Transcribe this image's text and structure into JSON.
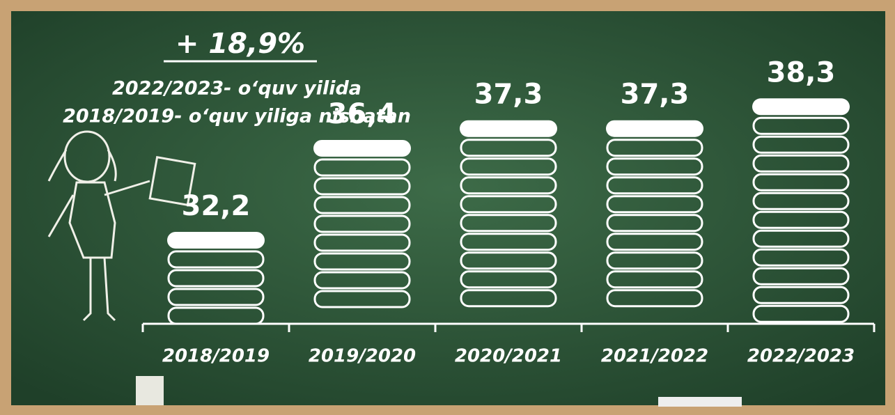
{
  "chart_data": {
    "type": "bar",
    "annotation": "+ 18,9%",
    "title_lines": [
      "2022/2023- o‘quv yilida",
      "2018/2019- o‘quv yiliga nisbatan"
    ],
    "categories": [
      "2018/2019",
      "2019/2020",
      "2020/2021",
      "2021/2022",
      "2022/2023"
    ],
    "values": [
      32.2,
      36.4,
      37.3,
      37.3,
      38.3
    ],
    "value_labels": [
      "32,2",
      "36,4",
      "37,3",
      "37,3",
      "38,3"
    ],
    "color": "#ffffff",
    "ylim": [
      28,
      38.5
    ]
  }
}
